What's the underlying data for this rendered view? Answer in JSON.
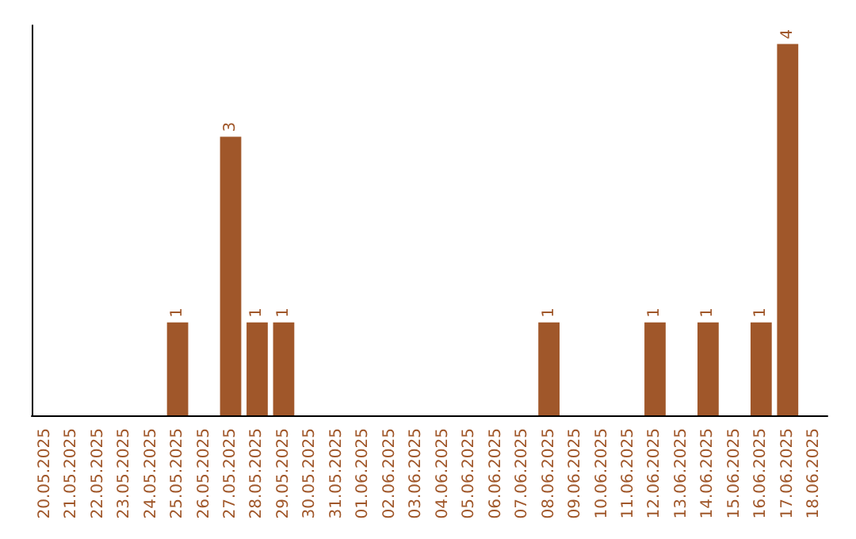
{
  "chart_data": {
    "type": "bar",
    "categories": [
      "20.05.2025",
      "21.05.2025",
      "22.05.2025",
      "23.05.2025",
      "24.05.2025",
      "25.05.2025",
      "26.05.2025",
      "27.05.2025",
      "28.05.2025",
      "29.05.2025",
      "30.05.2025",
      "31.05.2025",
      "01.06.2025",
      "02.06.2025",
      "03.06.2025",
      "04.06.2025",
      "05.06.2025",
      "06.06.2025",
      "07.06.2025",
      "08.06.2025",
      "09.06.2025",
      "10.06.2025",
      "11.06.2025",
      "12.06.2025",
      "13.06.2025",
      "14.06.2025",
      "15.06.2025",
      "16.06.2025",
      "17.06.2025",
      "18.06.2025"
    ],
    "values": [
      0,
      0,
      0,
      0,
      0,
      1,
      0,
      3,
      1,
      1,
      0,
      0,
      0,
      0,
      0,
      0,
      0,
      0,
      0,
      1,
      0,
      0,
      0,
      1,
      0,
      1,
      0,
      1,
      4,
      0
    ],
    "color": "#a0572a",
    "ylim": [
      0,
      4.2
    ],
    "value_labels": [
      null,
      null,
      null,
      null,
      null,
      "1",
      null,
      "3",
      "1",
      "1",
      null,
      null,
      null,
      null,
      null,
      null,
      null,
      null,
      null,
      "1",
      null,
      null,
      null,
      "1",
      null,
      "1",
      null,
      "1",
      "4",
      null
    ],
    "tick_labels": "x",
    "grid": false
  }
}
